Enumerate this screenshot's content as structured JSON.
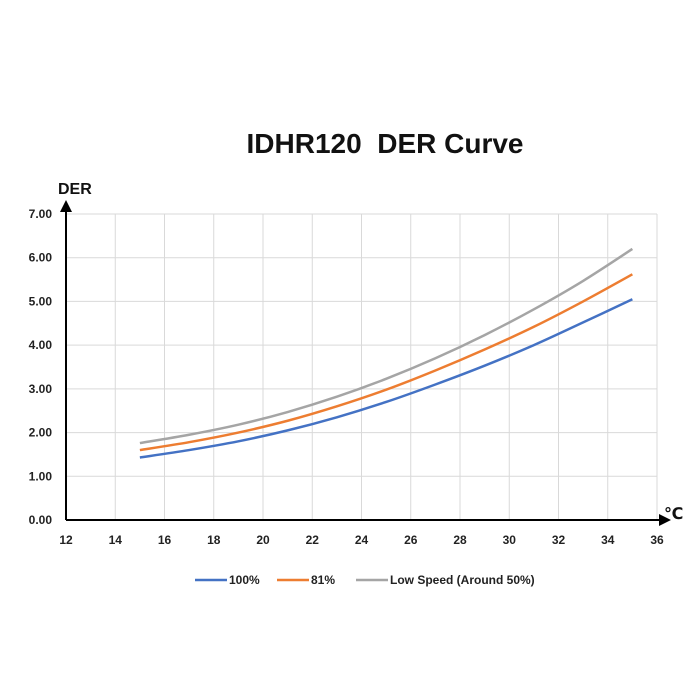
{
  "chart_data": {
    "type": "line",
    "title": "IDHR120  DER Curve",
    "ylabel": "DER",
    "xlabel": "℃",
    "xlim": [
      12,
      36
    ],
    "ylim": [
      0,
      7
    ],
    "x_ticks": [
      12,
      14,
      16,
      18,
      20,
      22,
      24,
      26,
      28,
      30,
      32,
      34,
      36
    ],
    "y_ticks": [
      "0.00",
      "1.00",
      "2.00",
      "3.00",
      "4.00",
      "5.00",
      "6.00",
      "7.00"
    ],
    "grid": true,
    "legend_position": "bottom",
    "x": [
      15,
      17,
      19,
      21,
      23,
      25,
      27,
      29,
      31,
      33,
      35
    ],
    "series": [
      {
        "name": "100%",
        "color": "#4472C4",
        "values": [
          1.43,
          1.6,
          1.8,
          2.05,
          2.35,
          2.7,
          3.1,
          3.53,
          4.0,
          4.52,
          5.05
        ]
      },
      {
        "name": "81%",
        "color": "#ED7D31",
        "values": [
          1.6,
          1.78,
          2.0,
          2.27,
          2.6,
          2.98,
          3.42,
          3.9,
          4.42,
          5.0,
          5.62
        ]
      },
      {
        "name": "Low Speed (Around 50%)",
        "color": "#A5A5A5",
        "values": [
          1.76,
          1.95,
          2.18,
          2.47,
          2.82,
          3.23,
          3.7,
          4.23,
          4.82,
          5.47,
          6.2
        ]
      }
    ]
  }
}
